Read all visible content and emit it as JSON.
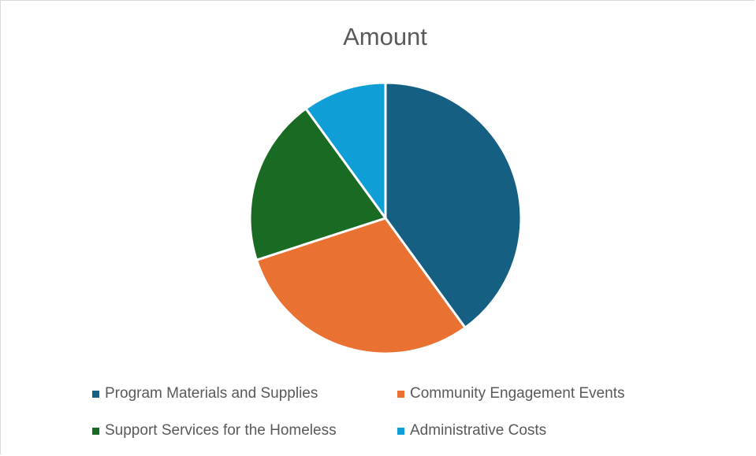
{
  "chart_data": {
    "type": "pie",
    "title": "Amount",
    "categories": [
      "Program Materials and Supplies",
      "Community Engagement Events",
      "Support Services for the Homeless",
      "Administrative Costs"
    ],
    "values": [
      40,
      30,
      20,
      10
    ],
    "colors": [
      "#156082",
      "#e97132",
      "#196b24",
      "#0f9ed5"
    ],
    "legend": "bottom"
  }
}
